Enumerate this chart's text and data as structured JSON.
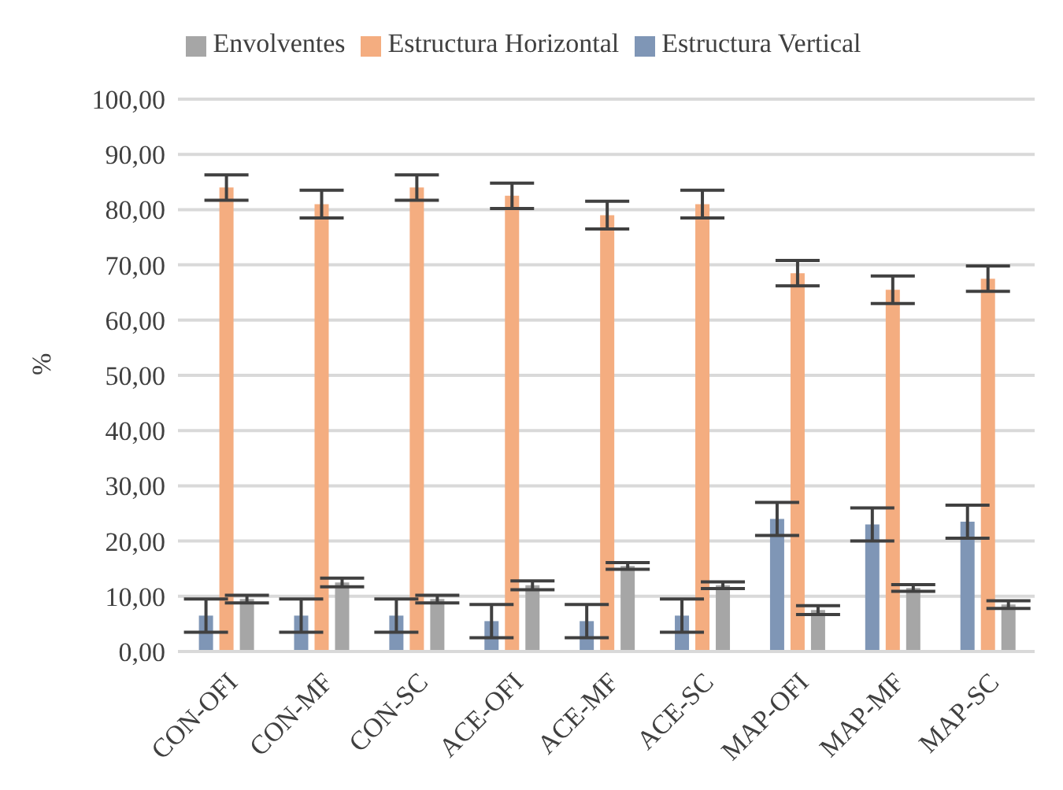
{
  "chart_data": {
    "type": "bar",
    "ylabel": "%",
    "categories": [
      "CON-OFI",
      "CON-MF",
      "CON-SC",
      "ACE-OFI",
      "ACE-MF",
      "ACE-SC",
      "MAP-OFI",
      "MAP-MF",
      "MAP-SC"
    ],
    "series": [
      {
        "name": "Estructura Vertical",
        "color": "#7f96b6",
        "values": [
          6.5,
          6.5,
          6.5,
          5.5,
          5.5,
          6.5,
          24,
          23,
          23.5
        ],
        "errors": [
          3,
          3,
          3,
          3,
          3,
          3,
          3,
          3,
          3
        ]
      },
      {
        "name": "Estructura Horizontal",
        "color": "#f4ad80",
        "values": [
          84,
          81,
          84,
          82.5,
          79,
          81,
          68.5,
          65.5,
          67.5
        ],
        "errors": [
          2.3,
          2.5,
          2.3,
          2.3,
          2.5,
          2.5,
          2.3,
          2.5,
          2.3
        ]
      },
      {
        "name": "Envolventes",
        "color": "#a6a6a6",
        "values": [
          9.5,
          12.5,
          9.5,
          12,
          15.5,
          12,
          7.5,
          11.5,
          8.5
        ],
        "errors": [
          0.7,
          0.8,
          0.7,
          0.8,
          0.6,
          0.6,
          0.8,
          0.6,
          0.7
        ]
      }
    ],
    "ylim": [
      0,
      100
    ],
    "yticks": [
      {
        "value": 0,
        "label": "0,00"
      },
      {
        "value": 10,
        "label": "10,00"
      },
      {
        "value": 20,
        "label": "20,00"
      },
      {
        "value": 30,
        "label": "30,00"
      },
      {
        "value": 40,
        "label": "40,00"
      },
      {
        "value": 50,
        "label": "50,00"
      },
      {
        "value": 60,
        "label": "60,00"
      },
      {
        "value": 70,
        "label": "70,00"
      },
      {
        "value": 80,
        "label": "80,00"
      },
      {
        "value": 90,
        "label": "90,00"
      },
      {
        "value": 100,
        "label": "100,00"
      }
    ],
    "grid": "y",
    "legend": "top"
  }
}
